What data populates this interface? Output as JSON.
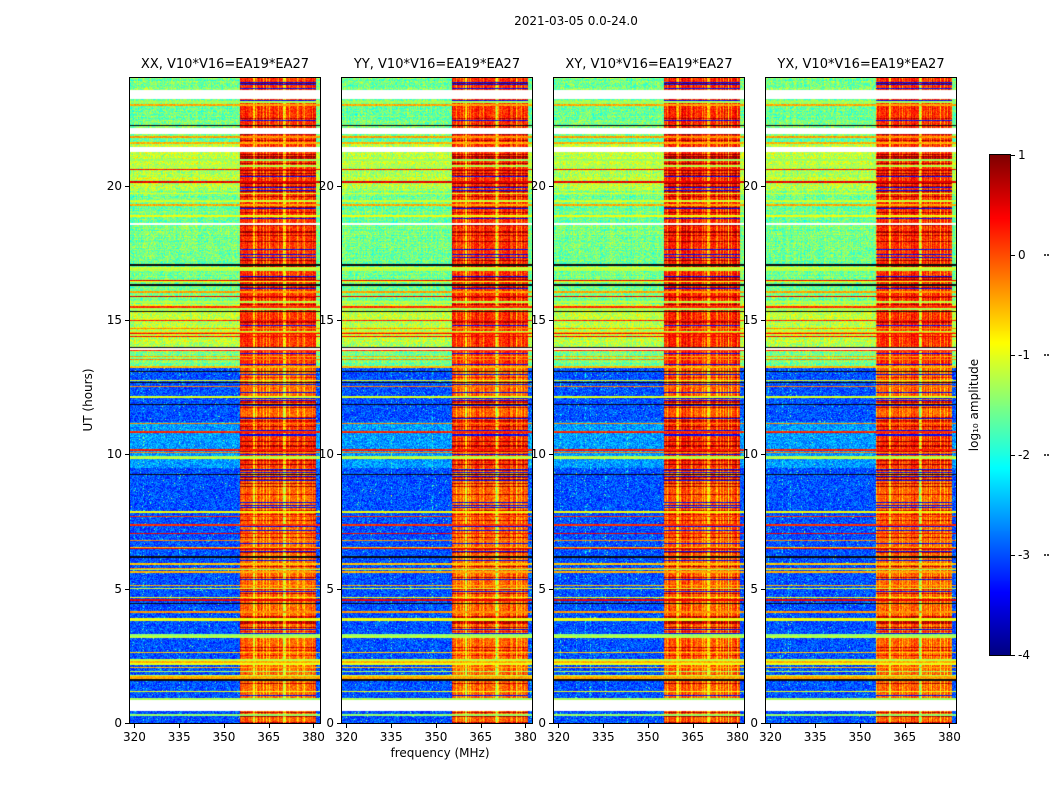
{
  "chart_data": {
    "type": "heatmap",
    "title": "2021-03-05 0.0-24.0",
    "xlabel": "frequency (MHz)",
    "ylabel": "UT (hours)",
    "x_ticks": [
      320,
      335,
      350,
      365,
      380
    ],
    "y_ticks": [
      0,
      5,
      10,
      15,
      20
    ],
    "x_range": [
      318.5,
      382.2
    ],
    "y_range": [
      0,
      24
    ],
    "panels": [
      {
        "label": "XX, V10*V16=EA19*EA27"
      },
      {
        "label": "YY, V10*V16=EA19*EA27"
      },
      {
        "label": "XY, V10*V16=EA19*EA27"
      },
      {
        "label": "YX, V10*V16=EA19*EA27"
      }
    ],
    "colorbar": {
      "label": "log₁₀ amplitude",
      "ticks": [
        1,
        0,
        -1,
        -2,
        -3,
        -4
      ],
      "vmin": -4,
      "vmax": 1,
      "colormap": "jet"
    },
    "content_summary": {
      "quiet_hours": [
        0,
        13.2
      ],
      "quiet_background_log_amp": -3.3,
      "active_hours": [
        13.2,
        24
      ],
      "active_background_log_amp": -1.8,
      "bright_rfi_band_mhz": [
        355.5,
        381.0
      ],
      "bright_rfi_band_log_amp": 0.3,
      "data_gap_hours": [
        [
          0.5,
          0.85
        ],
        [
          21.3,
          21.45
        ],
        [
          21.95,
          22.15
        ],
        [
          23.25,
          23.55
        ]
      ]
    }
  }
}
